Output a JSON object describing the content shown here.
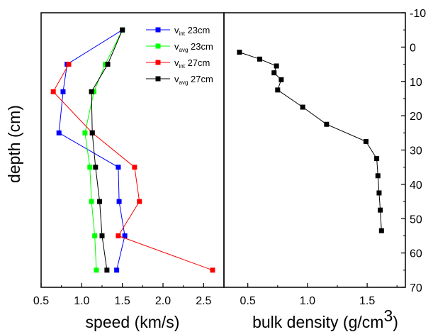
{
  "chart_data": [
    {
      "type": "line",
      "xlabel": "speed (km/s)",
      "ylabel": "depth (cm)",
      "xlim": [
        0.5,
        2.75
      ],
      "ylim": [
        70,
        -10
      ],
      "xticks": [
        0.5,
        1.0,
        1.5,
        2.0,
        2.5
      ],
      "xtick_labels": [
        "0.5",
        "1.0",
        "1.5",
        "2.0",
        "2.5"
      ],
      "grid": false,
      "legend_position": "top-right",
      "series": [
        {
          "name": "v_int 23cm",
          "legend_main": "v",
          "legend_sub": "int",
          "legend_rest": " 23cm",
          "color": "#0000ff",
          "x": [
            1.5,
            0.82,
            0.77,
            0.72,
            1.45,
            1.46,
            1.53,
            1.43
          ],
          "y": [
            -5,
            5,
            13,
            25,
            35,
            45,
            55,
            65
          ]
        },
        {
          "name": "v_avg 23cm",
          "legend_main": "v",
          "legend_sub": "avg",
          "legend_rest": " 23cm",
          "color": "#00ff00",
          "x": [
            1.5,
            1.29,
            1.15,
            1.04,
            1.1,
            1.12,
            1.16,
            1.18
          ],
          "y": [
            -5,
            5,
            13,
            25,
            35,
            45,
            55,
            65
          ]
        },
        {
          "name": "v_int 27cm",
          "legend_main": "v",
          "legend_sub": "int",
          "legend_rest": " 27cm",
          "color": "#ff0000",
          "x": [
            0.84,
            0.65,
            1.13,
            1.65,
            1.71,
            1.45,
            2.61
          ],
          "y": [
            5,
            13,
            25,
            35,
            45,
            55,
            65
          ]
        },
        {
          "name": "v_avg 27cm",
          "legend_main": "v",
          "legend_sub": "avg",
          "legend_rest": " 27cm",
          "color": "#000000",
          "x": [
            1.5,
            1.32,
            1.12,
            1.13,
            1.17,
            1.22,
            1.25,
            1.31
          ],
          "y": [
            -5,
            5,
            13,
            25,
            35,
            45,
            55,
            65
          ]
        }
      ]
    },
    {
      "type": "line",
      "xlabel": "bulk density (g/cm",
      "xlabel_sup": "3",
      "xlabel_end": ")",
      "xlim": [
        0.3,
        1.82
      ],
      "ylim": [
        70,
        -10
      ],
      "xticks": [
        0.5,
        1.0,
        1.5
      ],
      "xtick_labels": [
        "0.5",
        "1.0",
        "1.5"
      ],
      "yticks": [
        -10,
        0,
        10,
        20,
        30,
        40,
        50,
        60,
        70
      ],
      "ytick_labels": [
        "-10",
        "0",
        "10",
        "20",
        "30",
        "40",
        "50",
        "60",
        "70"
      ],
      "grid": false,
      "series": [
        {
          "color": "#000000",
          "x": [
            0.43,
            0.6,
            0.74,
            0.72,
            0.78,
            0.75,
            0.96,
            1.16,
            1.49,
            1.58,
            1.59,
            1.6,
            1.61,
            1.62
          ],
          "y": [
            1.5,
            3.5,
            5.5,
            7.5,
            9.5,
            12.5,
            17.5,
            22.5,
            27.5,
            32.5,
            37.5,
            42.5,
            47.5,
            53.5
          ]
        }
      ]
    }
  ]
}
